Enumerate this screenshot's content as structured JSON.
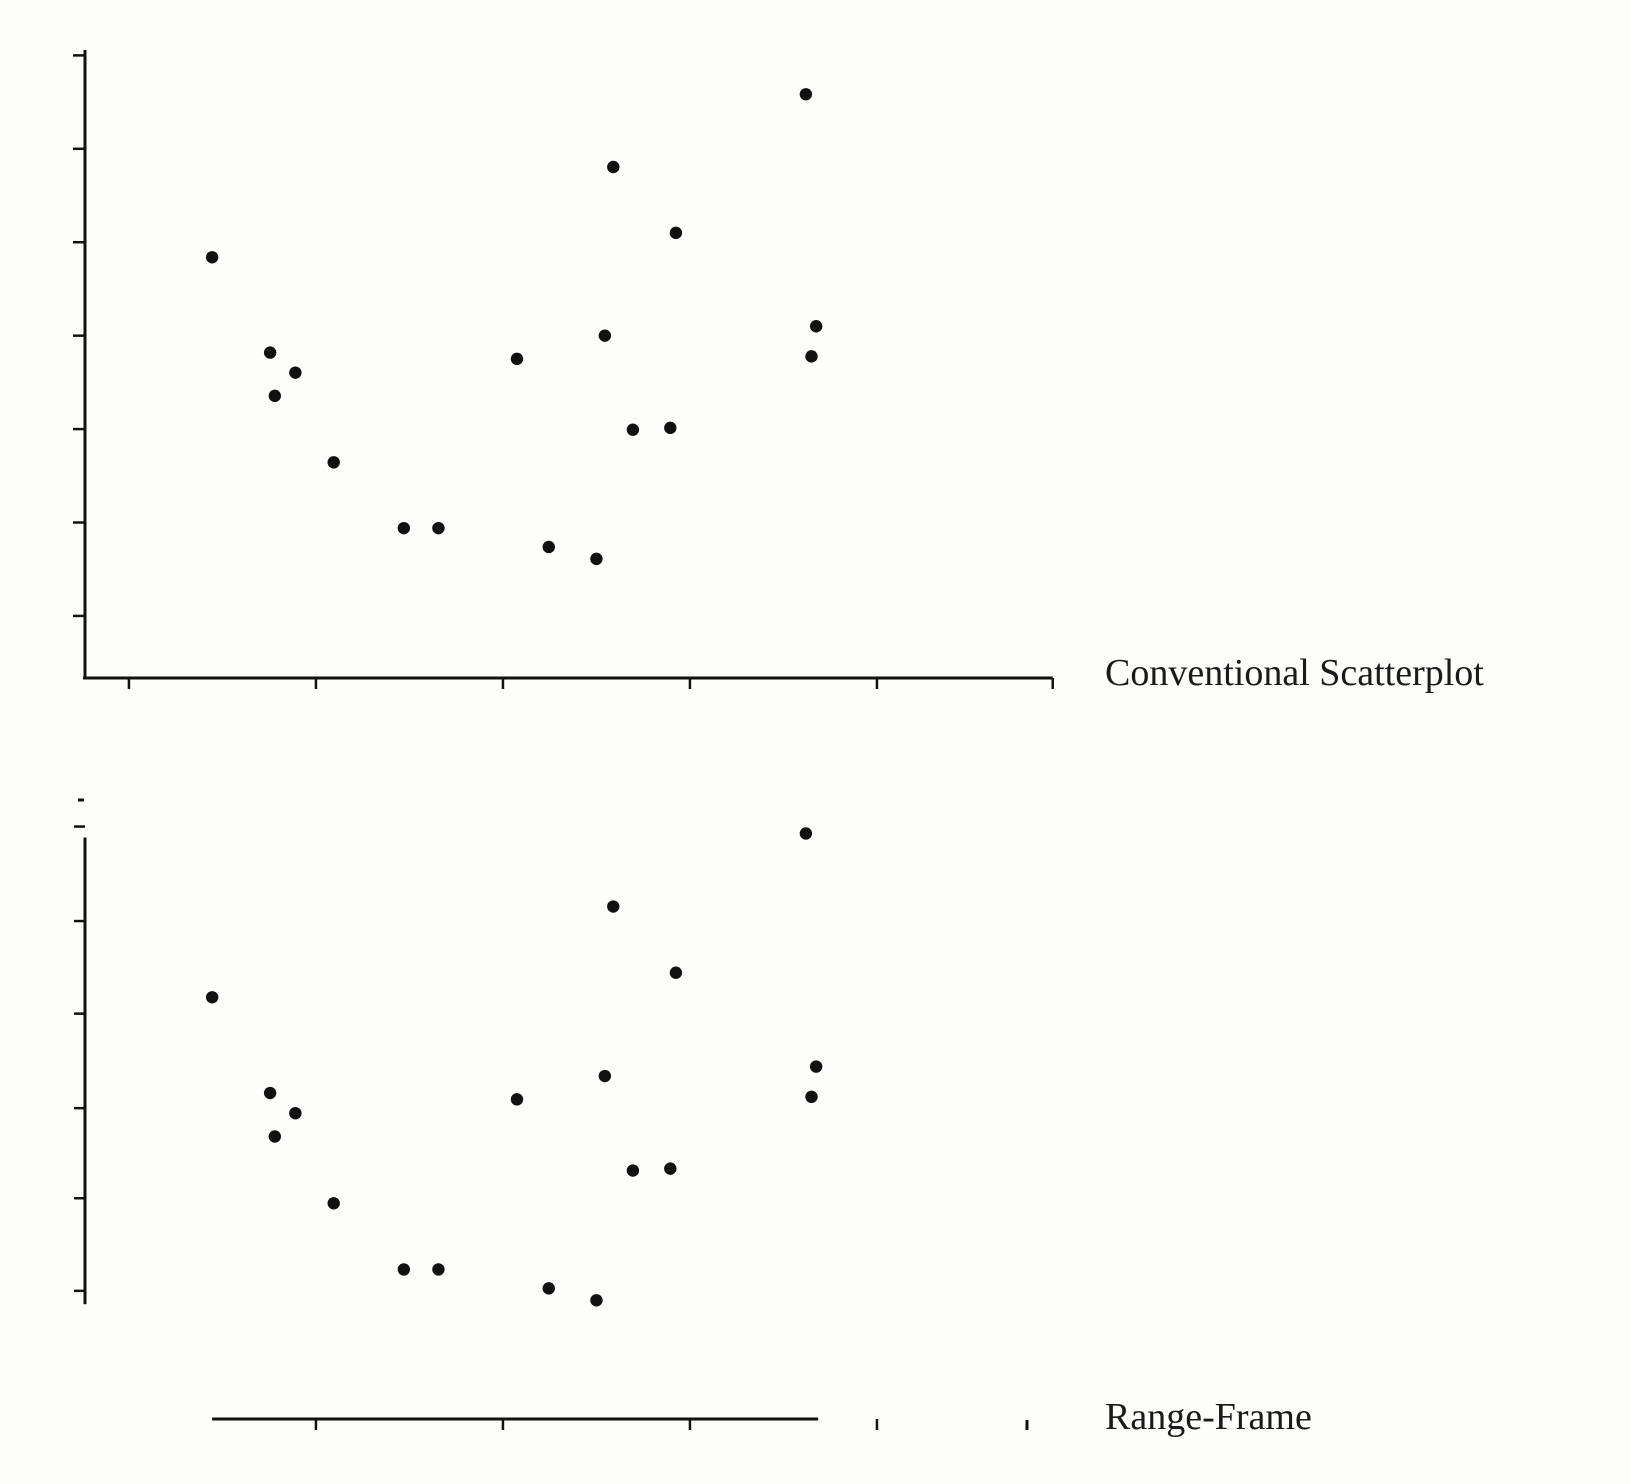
{
  "chart_data": [
    {
      "type": "scatter",
      "title": "",
      "caption": "Conventional Scatterplot",
      "xlabel": "",
      "ylabel": "",
      "frame": "conventional",
      "xlim": [
        0,
        100
      ],
      "ylim": [
        0,
        100
      ],
      "x_ticks": [
        4.7,
        24.7,
        44.7,
        64.7,
        84.7,
        103.5
      ],
      "y_ticks": [
        9.9,
        24.8,
        39.7,
        54.6,
        69.5,
        84.4,
        99.3
      ],
      "x": [
        13.6,
        19.8,
        20.3,
        22.5,
        26.6,
        34.1,
        37.8,
        46.2,
        49.6,
        54.7,
        55.6,
        56.5,
        58.6,
        62.6,
        63.2,
        78.2,
        77.1,
        77.7
      ],
      "y": [
        67.1,
        51.9,
        45.0,
        48.7,
        34.4,
        23.9,
        23.9,
        50.9,
        20.9,
        19.0,
        54.6,
        81.5,
        39.6,
        39.9,
        71.0,
        56.1,
        93.1,
        51.3
      ]
    },
    {
      "type": "scatter",
      "title": "",
      "caption": "Range-Frame",
      "xlabel": "",
      "ylabel": "",
      "frame": "range-frame",
      "xlim": [
        0,
        100
      ],
      "ylim": [
        0,
        100
      ],
      "x_ticks": [
        24.7,
        44.7,
        64.7,
        84.7
      ],
      "y_ticks": [
        20.5,
        35.2,
        49.5,
        64.5,
        79.2,
        94.2
      ],
      "x": [
        13.6,
        19.8,
        20.3,
        22.5,
        26.6,
        34.1,
        37.8,
        46.2,
        49.6,
        54.7,
        55.6,
        56.5,
        58.6,
        62.6,
        63.2,
        78.2,
        77.1,
        77.7
      ],
      "y": [
        67.1,
        51.9,
        45.0,
        48.7,
        34.4,
        23.9,
        23.9,
        50.9,
        20.9,
        19.0,
        54.6,
        81.5,
        39.6,
        39.9,
        71.0,
        56.1,
        93.1,
        51.3
      ],
      "x_range": [
        13.6,
        78.2
      ],
      "y_range": [
        19.0,
        93.1
      ]
    }
  ]
}
